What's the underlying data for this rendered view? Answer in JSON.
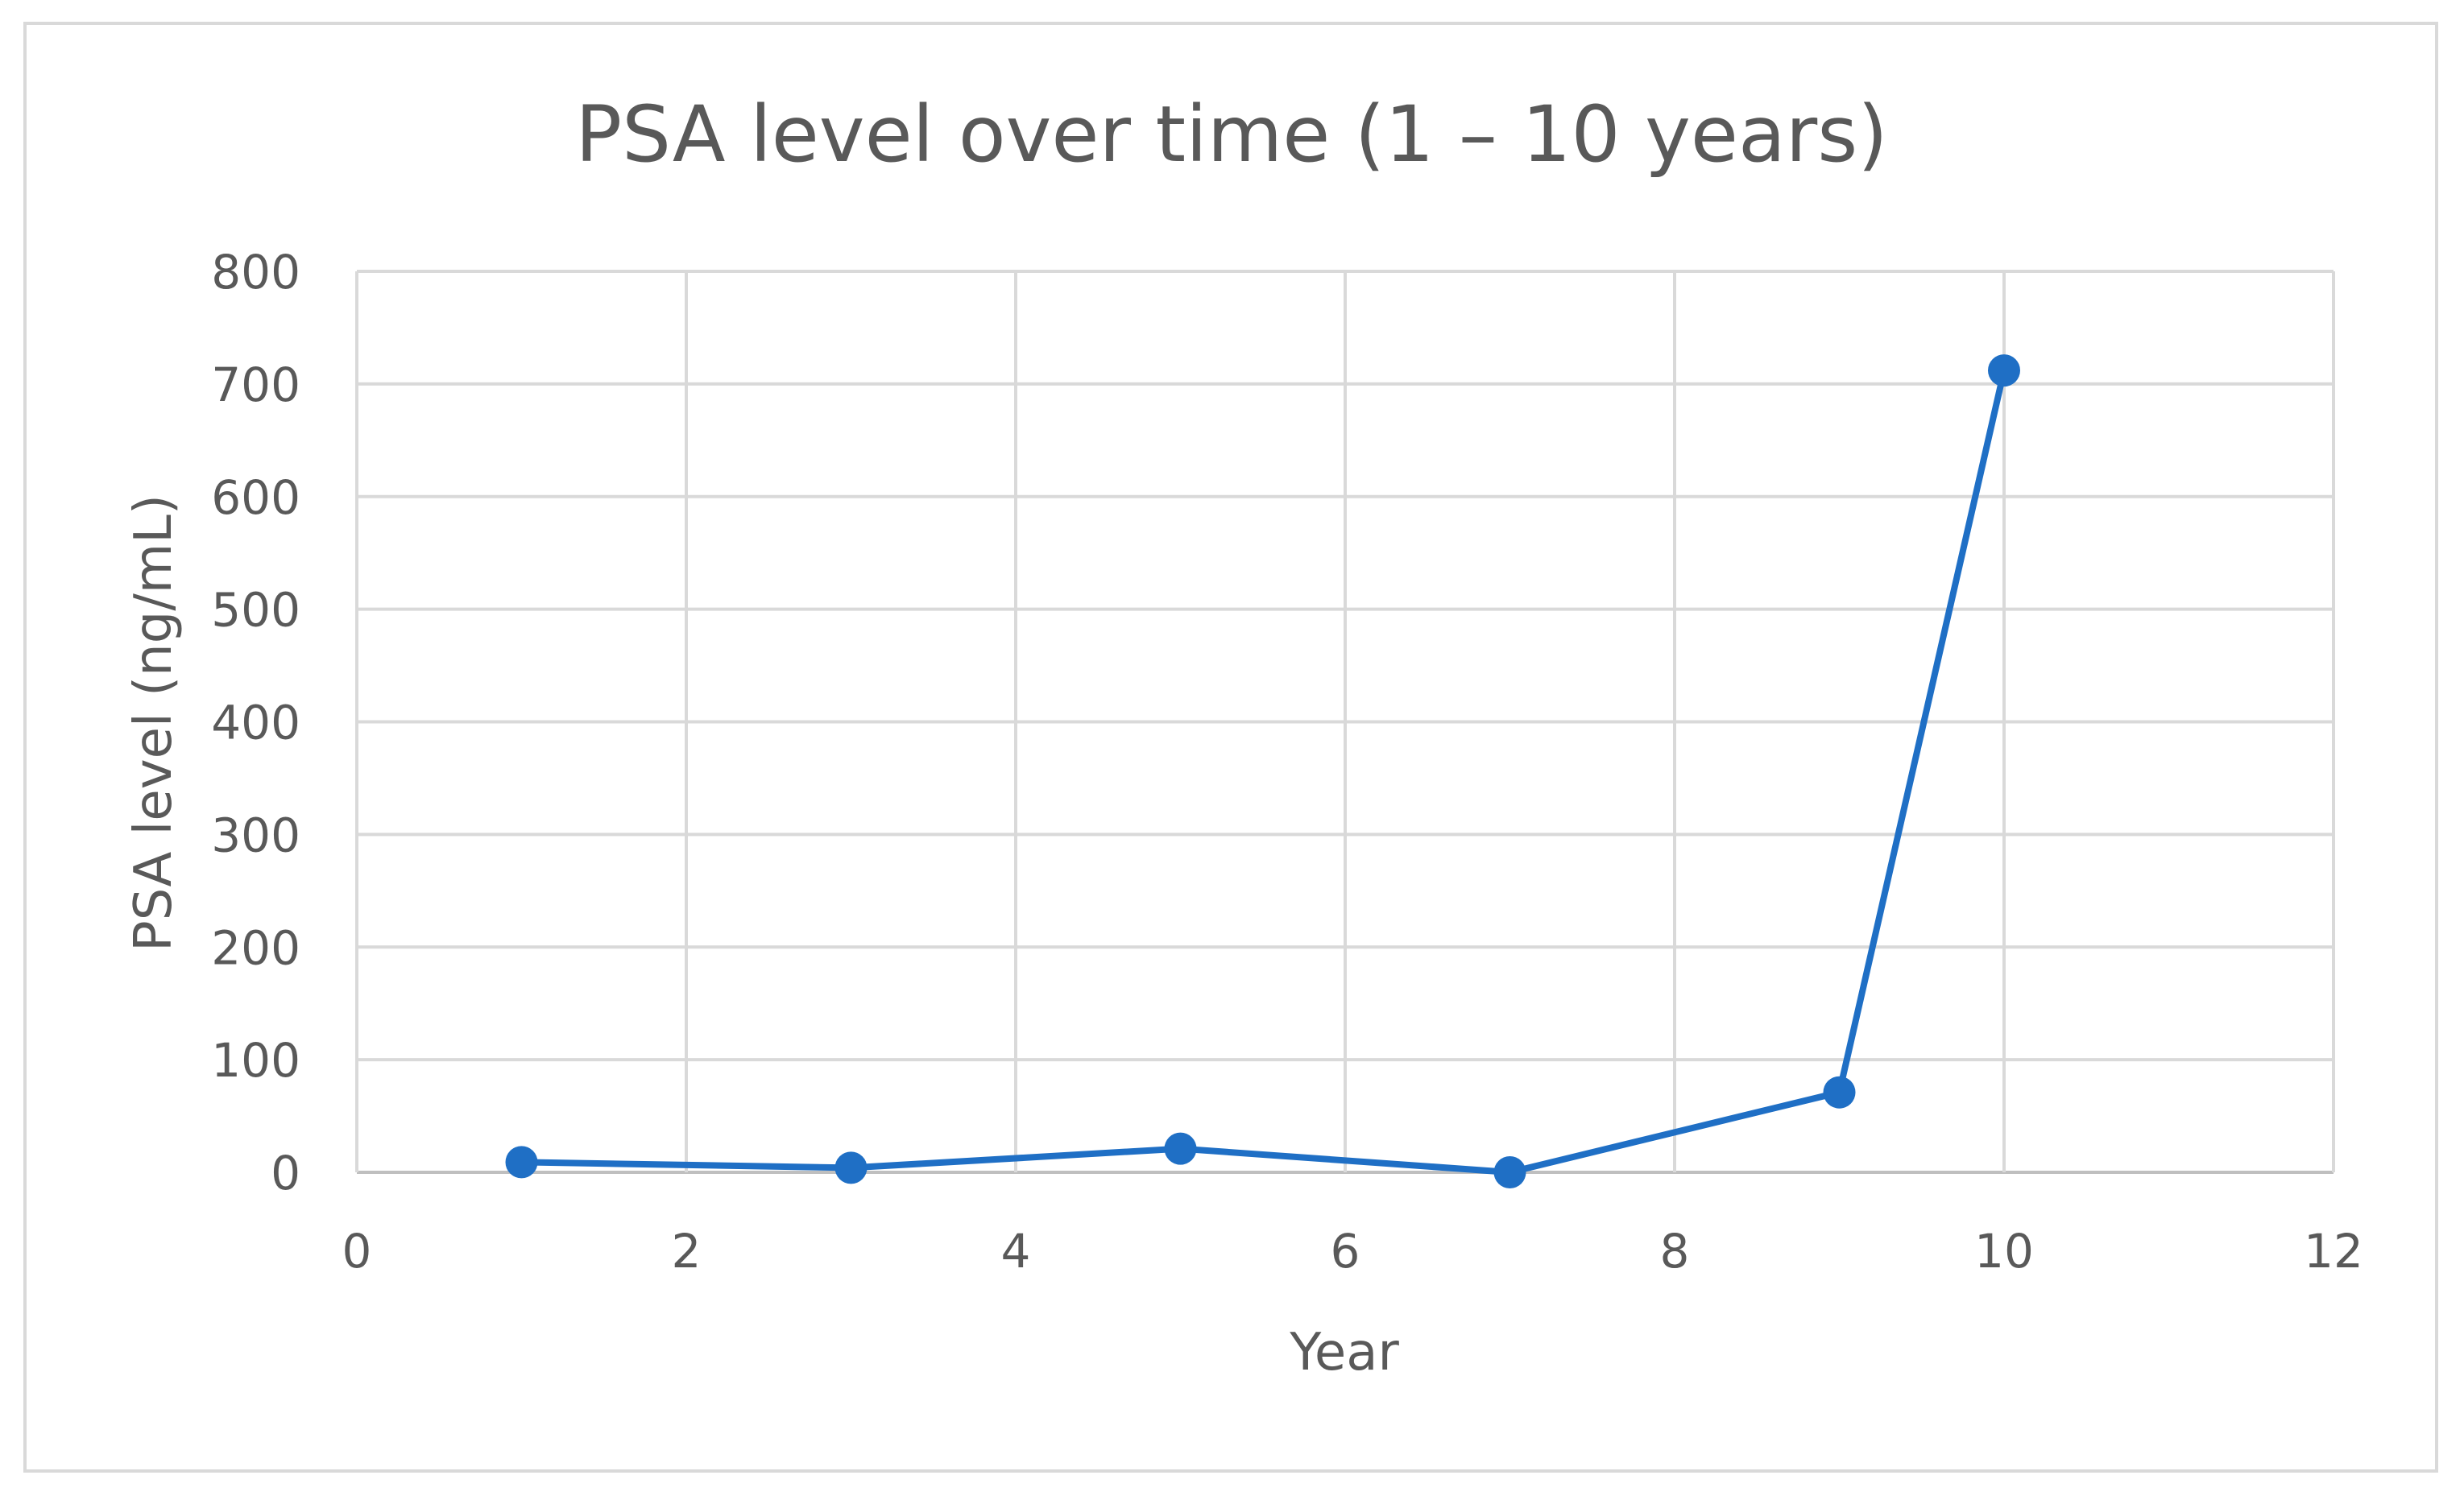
{
  "chart_data": {
    "type": "scatter",
    "title": "PSA level over time (1 – 10 years)",
    "xlabel": "Year",
    "ylabel": "PSA level (ng/mL)",
    "xlim": [
      0,
      12
    ],
    "ylim": [
      0,
      800
    ],
    "x_ticks": [
      "0",
      "2",
      "4",
      "6",
      "8",
      "10",
      "12"
    ],
    "y_ticks": [
      "0",
      "100",
      "200",
      "300",
      "400",
      "500",
      "600",
      "700",
      "800"
    ],
    "grid": true,
    "legend": "none",
    "series": [
      {
        "x": [
          1,
          3,
          5,
          7,
          9,
          10
        ],
        "y": [
          9,
          4,
          21,
          0,
          71,
          712
        ],
        "color": "#1f6fc5",
        "connected": true,
        "marker": "circle"
      }
    ]
  }
}
